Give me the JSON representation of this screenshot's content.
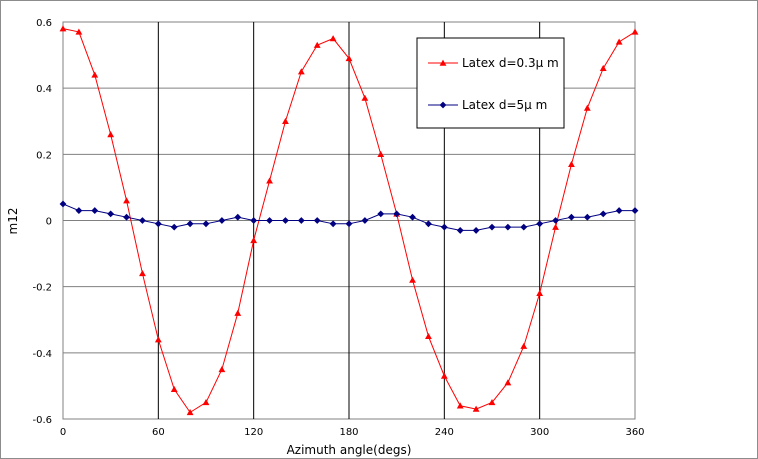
{
  "chart_data": {
    "type": "line",
    "title": "",
    "xlabel": "Azimuth angle(degs)",
    "ylabel": "m12",
    "xlim": [
      0,
      360
    ],
    "ylim": [
      -0.6,
      0.6
    ],
    "x_ticks": [
      0,
      60,
      120,
      180,
      240,
      300,
      360
    ],
    "y_ticks": [
      -0.6,
      -0.4,
      -0.2,
      0,
      0.2,
      0.4,
      0.6
    ],
    "y_tick_labels": [
      "-0.6",
      "-0.4",
      "-0.2",
      "0",
      "0.2",
      "0.4",
      "0.6"
    ],
    "grid": "both",
    "legend_position": "top-right",
    "series": [
      {
        "name": "Latex d=0.3μ m",
        "color": "#ff0000",
        "marker": "triangle",
        "x": [
          0,
          10,
          20,
          30,
          40,
          50,
          60,
          70,
          80,
          90,
          100,
          110,
          120,
          130,
          140,
          150,
          160,
          170,
          180,
          190,
          200,
          210,
          220,
          230,
          240,
          250,
          260,
          270,
          280,
          290,
          300,
          310,
          320,
          330,
          340,
          350,
          360
        ],
        "y": [
          0.58,
          0.57,
          0.44,
          0.26,
          0.06,
          -0.16,
          -0.36,
          -0.51,
          -0.58,
          -0.55,
          -0.45,
          -0.28,
          -0.06,
          0.12,
          0.3,
          0.45,
          0.53,
          0.55,
          0.49,
          0.37,
          0.2,
          0.02,
          -0.18,
          -0.35,
          -0.47,
          -0.56,
          -0.57,
          -0.55,
          -0.49,
          -0.38,
          -0.22,
          -0.02,
          0.17,
          0.34,
          0.46,
          0.54,
          0.57
        ]
      },
      {
        "name": "Latex d=5μ m",
        "color": "#000080",
        "marker": "diamond",
        "x": [
          0,
          10,
          20,
          30,
          40,
          50,
          60,
          70,
          80,
          90,
          100,
          110,
          120,
          130,
          140,
          150,
          160,
          170,
          180,
          190,
          200,
          210,
          220,
          230,
          240,
          250,
          260,
          270,
          280,
          290,
          300,
          310,
          320,
          330,
          340,
          350,
          360
        ],
        "y": [
          0.05,
          0.03,
          0.03,
          0.02,
          0.01,
          0.0,
          -0.01,
          -0.02,
          -0.01,
          -0.01,
          0.0,
          0.01,
          0.0,
          0.0,
          0.0,
          0.0,
          0.0,
          -0.01,
          -0.01,
          0.0,
          0.02,
          0.02,
          0.01,
          -0.01,
          -0.02,
          -0.03,
          -0.03,
          -0.02,
          -0.02,
          -0.02,
          -0.01,
          0.0,
          0.01,
          0.01,
          0.02,
          0.03,
          0.03
        ]
      }
    ]
  }
}
